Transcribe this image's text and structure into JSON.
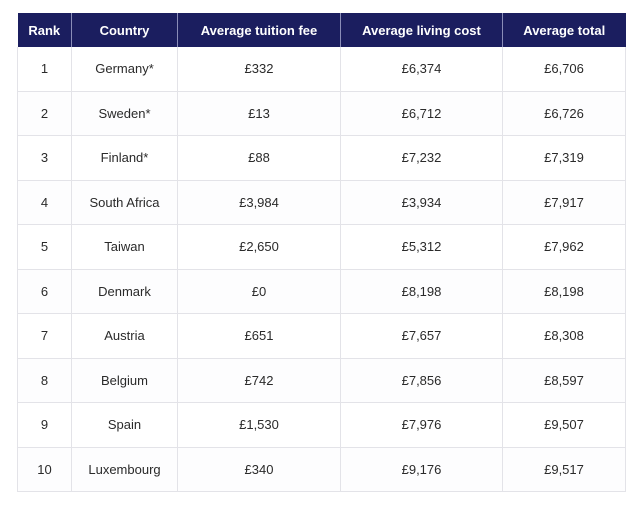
{
  "table": {
    "headers": [
      "Rank",
      "Country",
      "Average tuition fee",
      "Average living cost",
      "Average total"
    ],
    "rows": [
      [
        "1",
        "Germany*",
        "£332",
        "£6,374",
        "£6,706"
      ],
      [
        "2",
        "Sweden*",
        "£13",
        "£6,712",
        "£6,726"
      ],
      [
        "3",
        "Finland*",
        "£88",
        "£7,232",
        "£7,319"
      ],
      [
        "4",
        "South Africa",
        "£3,984",
        "£3,934",
        "£7,917"
      ],
      [
        "5",
        "Taiwan",
        "£2,650",
        "£5,312",
        "£7,962"
      ],
      [
        "6",
        "Denmark",
        "£0",
        "£8,198",
        "£8,198"
      ],
      [
        "7",
        "Austria",
        "£651",
        "£7,657",
        "£8,308"
      ],
      [
        "8",
        "Belgium",
        "£742",
        "£7,856",
        "£8,597"
      ],
      [
        "9",
        "Spain",
        "£1,530",
        "£7,976",
        "£9,507"
      ],
      [
        "10",
        "Luxembourg",
        "£340",
        "£9,176",
        "£9,517"
      ]
    ]
  },
  "colors": {
    "header_background": "#1b1e5f",
    "header_text": "#ffffff",
    "body_text": "#2a2a2a",
    "grid_lines": "#e3e3e8"
  }
}
